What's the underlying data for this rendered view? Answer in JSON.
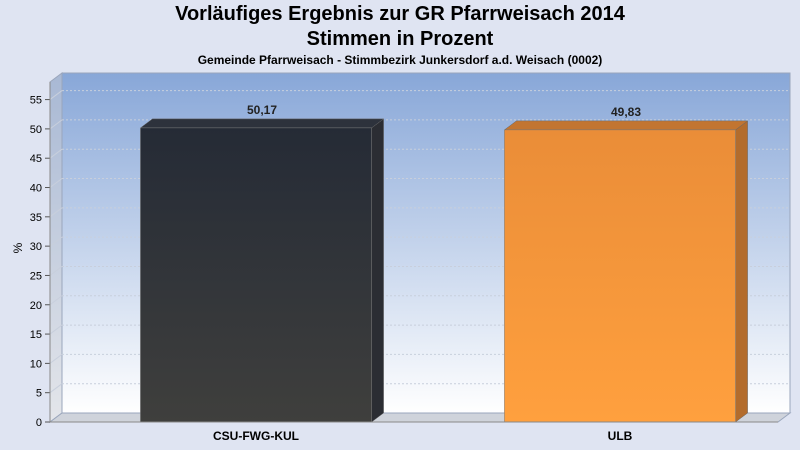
{
  "header": {
    "title_line1": "Vorläufiges Ergebnis zur GR Pfarrweisach 2014",
    "title_line2": "Stimmen in Prozent",
    "subtitle": "Gemeinde Pfarrweisach - Stimmbezirk Junkersdorf a.d. Weisach (0002)"
  },
  "chart_data": {
    "type": "bar",
    "title": "Vorläufiges Ergebnis zur GR Pfarrweisach 2014 Stimmen in Prozent",
    "subtitle": "Gemeinde Pfarrweisach - Stimmbezirk Junkersdorf a.d. Weisach (0002)",
    "categories": [
      "CSU-FWG-KUL",
      "ULB"
    ],
    "values": [
      50.17,
      49.83
    ],
    "value_labels": [
      "50,17",
      "49,83"
    ],
    "colors": [
      "#33363d",
      "#f7953a"
    ],
    "xlabel": "",
    "ylabel": "%",
    "ylim": [
      0,
      58
    ],
    "yticks": [
      0,
      5,
      10,
      15,
      20,
      25,
      30,
      35,
      40,
      45,
      50,
      55
    ],
    "grid": true,
    "legend": "none"
  }
}
